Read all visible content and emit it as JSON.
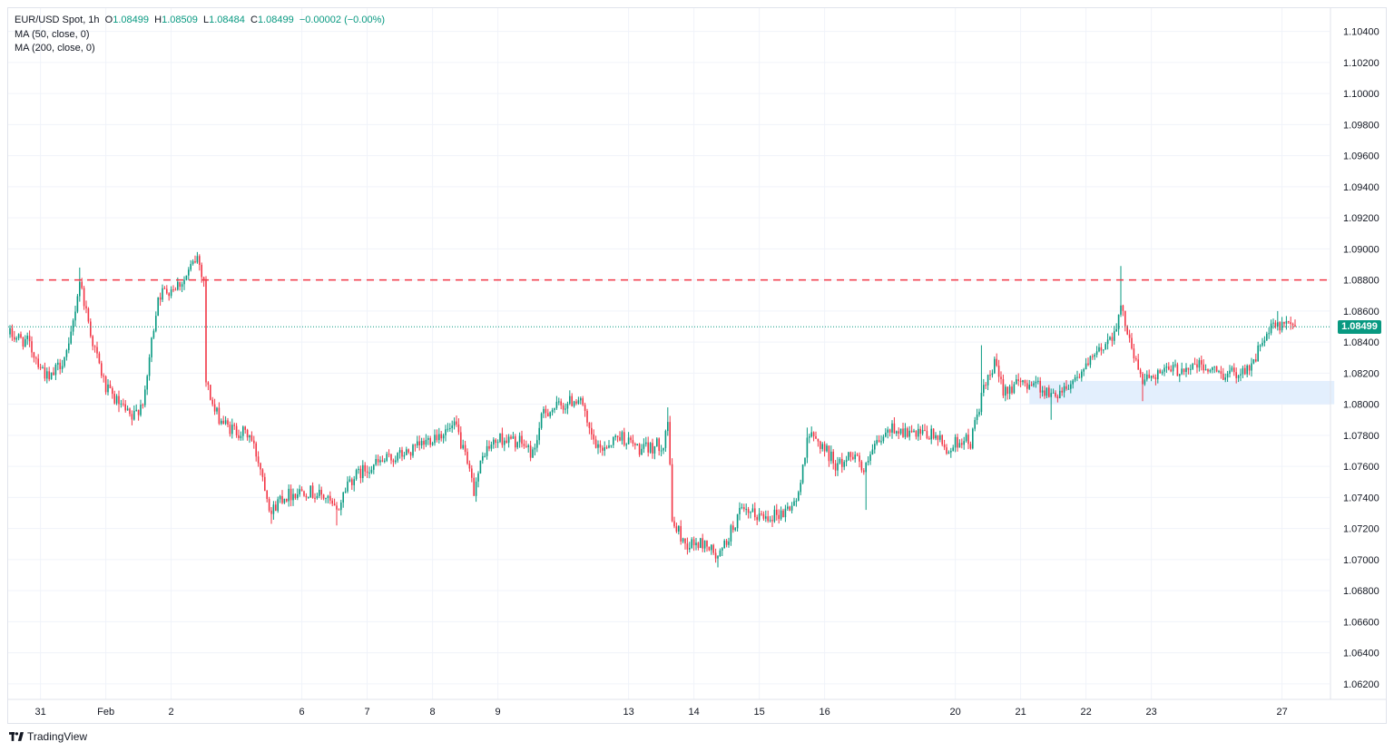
{
  "legend": {
    "symbol": "EUR/USD Spot, 1h",
    "o_label": "O",
    "o_value": "1.08499",
    "h_label": "H",
    "h_value": "1.08509",
    "l_label": "L",
    "l_value": "1.08484",
    "c_label": "C",
    "c_value": "1.08499",
    "change": "−0.00002 (−0.00%)",
    "ma1": "MA (50, close, 0)",
    "ma2": "MA (200, close, 0)"
  },
  "brand": {
    "name": "TradingView",
    "logo": "tradingview-logo-icon"
  },
  "colors": {
    "up": "#089981",
    "down": "#f23645",
    "resistance": "#f23645",
    "zone": "#e3effd",
    "grid": "#f0f3fa"
  },
  "chart_data": {
    "type": "candlestick",
    "symbol": "EUR/USD Spot",
    "interval": "1h",
    "ylim": [
      1.061,
      1.1055
    ],
    "y_ticks": [
      1.062,
      1.064,
      1.066,
      1.068,
      1.07,
      1.072,
      1.074,
      1.076,
      1.078,
      1.08,
      1.082,
      1.084,
      1.086,
      1.088,
      1.09,
      1.092,
      1.094,
      1.096,
      1.098,
      1.1,
      1.102,
      1.104
    ],
    "y_tick_labels": [
      "1.06200",
      "1.06400",
      "1.06600",
      "1.06800",
      "1.07000",
      "1.07200",
      "1.07400",
      "1.07600",
      "1.07800",
      "1.08000",
      "1.08200",
      "1.08400",
      "1.08600",
      "1.08800",
      "1.09000",
      "1.09200",
      "1.09400",
      "1.09600",
      "1.09800",
      "1.10000",
      "1.10200",
      "1.10400"
    ],
    "x_ticks": [
      {
        "label": "31",
        "bar": 14
      },
      {
        "label": "Feb",
        "bar": 44
      },
      {
        "label": "2",
        "bar": 74
      },
      {
        "label": "6",
        "bar": 134
      },
      {
        "label": "7",
        "bar": 164
      },
      {
        "label": "8",
        "bar": 194
      },
      {
        "label": "9",
        "bar": 224
      },
      {
        "label": "13",
        "bar": 284
      },
      {
        "label": "14",
        "bar": 314
      },
      {
        "label": "15",
        "bar": 344
      },
      {
        "label": "16",
        "bar": 374
      },
      {
        "label": "20",
        "bar": 434
      },
      {
        "label": "21",
        "bar": 464
      },
      {
        "label": "22",
        "bar": 494
      },
      {
        "label": "23",
        "bar": 524
      },
      {
        "label": "27",
        "bar": 584
      }
    ],
    "anchors": [
      [
        0,
        1.0845
      ],
      [
        8,
        1.084
      ],
      [
        18,
        1.0815
      ],
      [
        27,
        1.0835
      ],
      [
        32,
        1.088
      ],
      [
        38,
        1.084
      ],
      [
        44,
        1.081
      ],
      [
        50,
        1.08
      ],
      [
        56,
        1.079
      ],
      [
        62,
        1.0805
      ],
      [
        64,
        1.083
      ],
      [
        68,
        1.087
      ],
      [
        80,
        1.088
      ],
      [
        86,
        1.0895
      ],
      [
        89,
        1.088
      ],
      [
        90,
        1.0815
      ],
      [
        94,
        1.0795
      ],
      [
        100,
        1.0785
      ],
      [
        110,
        1.078
      ],
      [
        115,
        1.076
      ],
      [
        120,
        1.073
      ],
      [
        124,
        1.074
      ],
      [
        135,
        1.0745
      ],
      [
        145,
        1.074
      ],
      [
        150,
        1.073
      ],
      [
        155,
        1.075
      ],
      [
        165,
        1.076
      ],
      [
        175,
        1.0765
      ],
      [
        185,
        1.077
      ],
      [
        195,
        1.078
      ],
      [
        205,
        1.0785
      ],
      [
        210,
        1.076
      ],
      [
        213,
        1.0745
      ],
      [
        218,
        1.077
      ],
      [
        225,
        1.0778
      ],
      [
        235,
        1.0775
      ],
      [
        240,
        1.0768
      ],
      [
        245,
        1.0795
      ],
      [
        255,
        1.08
      ],
      [
        262,
        1.0805
      ],
      [
        265,
        1.0785
      ],
      [
        270,
        1.077
      ],
      [
        280,
        1.078
      ],
      [
        290,
        1.077
      ],
      [
        300,
        1.0775
      ],
      [
        302,
        1.079
      ],
      [
        304,
        1.0725
      ],
      [
        310,
        1.071
      ],
      [
        320,
        1.071
      ],
      [
        325,
        1.07
      ],
      [
        330,
        1.0715
      ],
      [
        335,
        1.073
      ],
      [
        345,
        1.0728
      ],
      [
        355,
        1.073
      ],
      [
        362,
        1.074
      ],
      [
        366,
        1.078
      ],
      [
        372,
        1.0775
      ],
      [
        380,
        1.076
      ],
      [
        388,
        1.077
      ],
      [
        392,
        1.0755
      ],
      [
        396,
        1.077
      ],
      [
        405,
        1.0785
      ],
      [
        415,
        1.078
      ],
      [
        425,
        1.078
      ],
      [
        430,
        1.077
      ],
      [
        437,
        1.0778
      ],
      [
        441,
        1.0775
      ],
      [
        446,
        1.0805
      ],
      [
        452,
        1.0825
      ],
      [
        456,
        1.081
      ],
      [
        470,
        1.0815
      ],
      [
        478,
        1.0805
      ],
      [
        485,
        1.0812
      ],
      [
        495,
        1.0825
      ],
      [
        506,
        1.0845
      ],
      [
        510,
        1.086
      ],
      [
        514,
        1.0845
      ],
      [
        516,
        1.083
      ],
      [
        520,
        1.0815
      ],
      [
        525,
        1.082
      ],
      [
        535,
        1.0822
      ],
      [
        545,
        1.0825
      ],
      [
        555,
        1.082
      ],
      [
        562,
        1.082
      ],
      [
        570,
        1.0825
      ],
      [
        575,
        1.084
      ],
      [
        580,
        1.085
      ],
      [
        590,
        1.085
      ]
    ],
    "spikes": [
      {
        "bar": 32,
        "high": 1.0888
      },
      {
        "bar": 86,
        "high": 1.0898
      },
      {
        "bar": 50,
        "low": 1.0795
      },
      {
        "bar": 120,
        "low": 1.0723
      },
      {
        "bar": 150,
        "low": 1.0722
      },
      {
        "bar": 213,
        "low": 1.0742
      },
      {
        "bar": 262,
        "high": 1.0805
      },
      {
        "bar": 302,
        "high": 1.0798
      },
      {
        "bar": 325,
        "low": 1.0695
      },
      {
        "bar": 366,
        "high": 1.0785
      },
      {
        "bar": 393,
        "low": 1.0732
      },
      {
        "bar": 446,
        "high": 1.0838
      },
      {
        "bar": 478,
        "low": 1.079
      },
      {
        "bar": 510,
        "high": 1.0889
      },
      {
        "bar": 520,
        "low": 1.0802
      },
      {
        "bar": 582,
        "high": 1.086
      }
    ],
    "last_price": 1.08499,
    "last_price_label": "1.08499",
    "resistance_level": 1.088,
    "support_zone": {
      "from_bar": 468,
      "to_bar": 608,
      "top": 1.0815,
      "bottom": 1.08
    },
    "indicators": [
      "MA (50, close, 0)",
      "MA (200, close, 0)"
    ]
  }
}
